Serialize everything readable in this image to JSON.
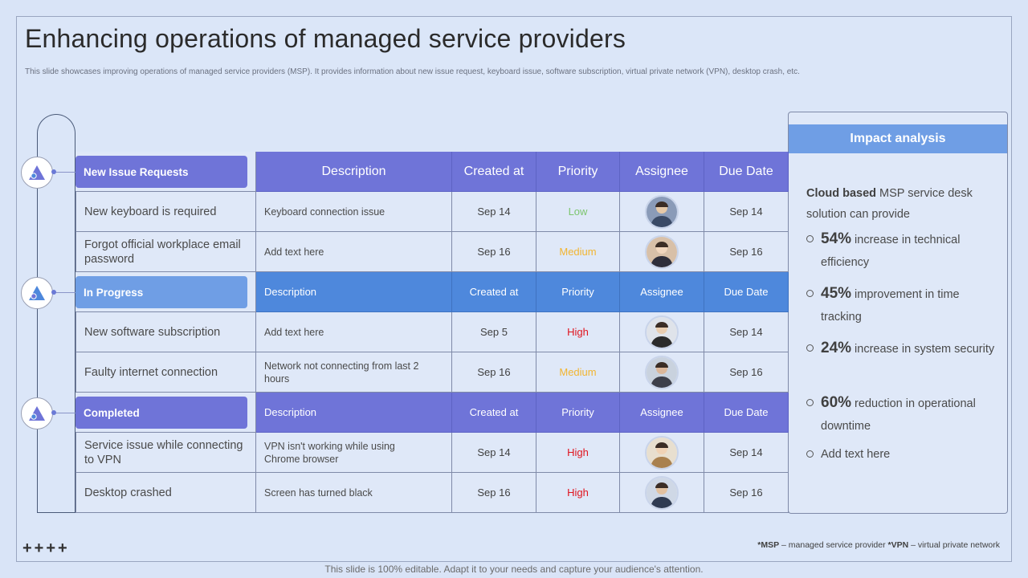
{
  "title": "Enhancing operations of managed service providers",
  "subtitle": "This slide showcases improving operations of managed service providers (MSP). It provides information about new issue request, keyboard issue, software subscription, virtual private network (VPN), desktop crash, etc.",
  "plus_marks": "++++",
  "footer": "This slide is 100% editable. Adapt it to your needs and capture your audience's attention.",
  "footnote": {
    "msp_abbr": "*MSP",
    "msp_text": " – managed service provider ",
    "vpn_abbr": "*VPN",
    "vpn_text": " – virtual private network"
  },
  "colors": {
    "header_primary": "#6f74d8",
    "header_secondary": "#4e88dc",
    "low": "#7cc56e",
    "medium": "#f2b531",
    "high": "#e0141e"
  },
  "sections": [
    {
      "label": "New Issue Requests",
      "columns": [
        "Description",
        "Created at",
        "Priority",
        "Assignee",
        "Due Date"
      ],
      "rows": [
        {
          "task": "New keyboard is required",
          "description": "Keyboard connection issue",
          "created": "Sep 14",
          "priority": "Low",
          "due": "Sep 14"
        },
        {
          "task": "Forgot official workplace email password",
          "description": "Add text here",
          "created": "Sep 16",
          "priority": "Medium",
          "due": "Sep 16"
        }
      ]
    },
    {
      "label": "In Progress",
      "columns": [
        "Description",
        "Created at",
        "Priority",
        "Assignee",
        "Due Date"
      ],
      "rows": [
        {
          "task": "New software subscription",
          "description": "Add text here",
          "created": "Sep 5",
          "priority": "High",
          "due": "Sep 14"
        },
        {
          "task": "Faulty internet connection",
          "description": "Network not connecting from last 2 hours",
          "created": "Sep 16",
          "priority": "Medium",
          "due": "Sep 16"
        }
      ]
    },
    {
      "label": "Completed",
      "columns": [
        "Description",
        "Created at",
        "Priority",
        "Assignee",
        "Due Date"
      ],
      "rows": [
        {
          "task": "Service issue while connecting to VPN",
          "description": "VPN isn't working while using Chrome browser",
          "created": "Sep 14",
          "priority": "High",
          "due": "Sep 14"
        },
        {
          "task": "Desktop crashed",
          "description": "Screen has turned black",
          "created": "Sep 16",
          "priority": "High",
          "due": "Sep 16"
        }
      ]
    }
  ],
  "impact": {
    "title": "Impact analysis",
    "intro_bold": "Cloud based",
    "intro_rest": " MSP service desk solution can provide",
    "items": [
      {
        "pct": "54%",
        "text": " increase in technical efficiency"
      },
      {
        "pct": "45%",
        "text": " improvement in time tracking"
      },
      {
        "pct": "24%",
        "text": " increase in system security"
      },
      {
        "pct": "60%",
        "text": " reduction in operational downtime"
      },
      {
        "pct": "",
        "text": "Add text here"
      }
    ]
  }
}
